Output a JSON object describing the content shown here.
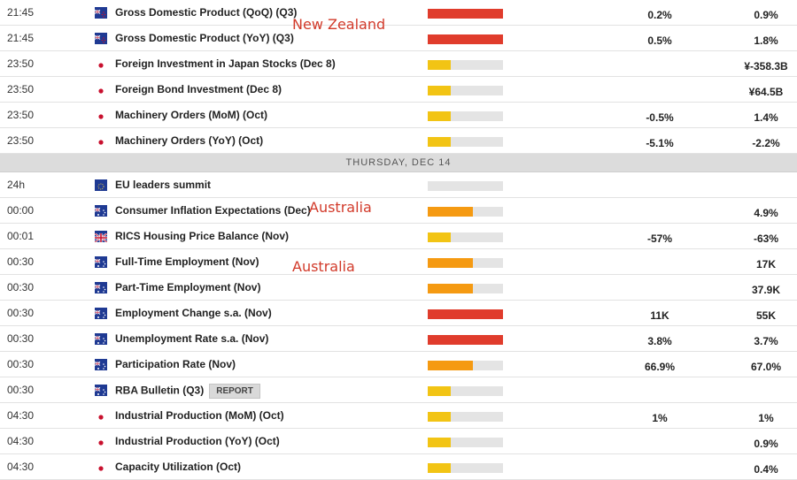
{
  "colors": {
    "high": "#e03c2c",
    "medium": "#f59a12",
    "low": "#f2c414",
    "bar_bg": "#e4e4e4",
    "note": "#d23a2a"
  },
  "rows_before": [
    {
      "time": "21:45",
      "flag": "nz",
      "event": "Gross Domestic Product (QoQ) (Q3)",
      "impact": "high",
      "actual": "0.2%",
      "forecast": "0.9%"
    },
    {
      "time": "21:45",
      "flag": "nz",
      "event": "Gross Domestic Product (YoY) (Q3)",
      "impact": "high",
      "actual": "0.5%",
      "forecast": "1.8%"
    },
    {
      "time": "23:50",
      "flag": "jp",
      "event": "Foreign Investment in Japan Stocks (Dec 8)",
      "impact": "low",
      "actual": "",
      "forecast": "¥-358.3B"
    },
    {
      "time": "23:50",
      "flag": "jp",
      "event": "Foreign Bond Investment (Dec 8)",
      "impact": "low",
      "actual": "",
      "forecast": "¥64.5B"
    },
    {
      "time": "23:50",
      "flag": "jp",
      "event": "Machinery Orders (MoM) (Oct)",
      "impact": "low",
      "actual": "-0.5%",
      "forecast": "1.4%"
    },
    {
      "time": "23:50",
      "flag": "jp",
      "event": "Machinery Orders (YoY) (Oct)",
      "impact": "low",
      "actual": "-5.1%",
      "forecast": "-2.2%"
    }
  ],
  "day_header": "THURSDAY, DEC 14",
  "rows_after": [
    {
      "time": "24h",
      "flag": "eu",
      "event": "EU leaders summit",
      "impact": "none",
      "actual": "",
      "forecast": ""
    },
    {
      "time": "00:00",
      "flag": "au",
      "event": "Consumer Inflation Expectations (Dec)",
      "impact": "medium",
      "actual": "",
      "forecast": "4.9%"
    },
    {
      "time": "00:01",
      "flag": "uk",
      "event": "RICS Housing Price Balance (Nov)",
      "impact": "low",
      "actual": "-57%",
      "forecast": "-63%"
    },
    {
      "time": "00:30",
      "flag": "au",
      "event": "Full-Time Employment (Nov)",
      "impact": "medium",
      "actual": "",
      "forecast": "17K"
    },
    {
      "time": "00:30",
      "flag": "au",
      "event": "Part-Time Employment (Nov)",
      "impact": "medium",
      "actual": "",
      "forecast": "37.9K"
    },
    {
      "time": "00:30",
      "flag": "au",
      "event": "Employment Change s.a. (Nov)",
      "impact": "high",
      "actual": "11K",
      "forecast": "55K"
    },
    {
      "time": "00:30",
      "flag": "au",
      "event": "Unemployment Rate s.a. (Nov)",
      "impact": "high",
      "actual": "3.8%",
      "forecast": "3.7%"
    },
    {
      "time": "00:30",
      "flag": "au",
      "event": "Participation Rate (Nov)",
      "impact": "medium",
      "actual": "66.9%",
      "forecast": "67.0%"
    },
    {
      "time": "00:30",
      "flag": "au",
      "event": "RBA Bulletin (Q3)",
      "tag": "REPORT",
      "impact": "low",
      "actual": "",
      "forecast": ""
    },
    {
      "time": "04:30",
      "flag": "jp",
      "event": "Industrial Production (MoM) (Oct)",
      "impact": "low",
      "actual": "1%",
      "forecast": "1%"
    },
    {
      "time": "04:30",
      "flag": "jp",
      "event": "Industrial Production (YoY) (Oct)",
      "impact": "low",
      "actual": "",
      "forecast": "0.9%"
    },
    {
      "time": "04:30",
      "flag": "jp",
      "event": "Capacity Utilization (Oct)",
      "impact": "low",
      "actual": "",
      "forecast": "0.4%"
    }
  ],
  "annotations": [
    "New Zealand",
    "Australia",
    "Australia"
  ]
}
